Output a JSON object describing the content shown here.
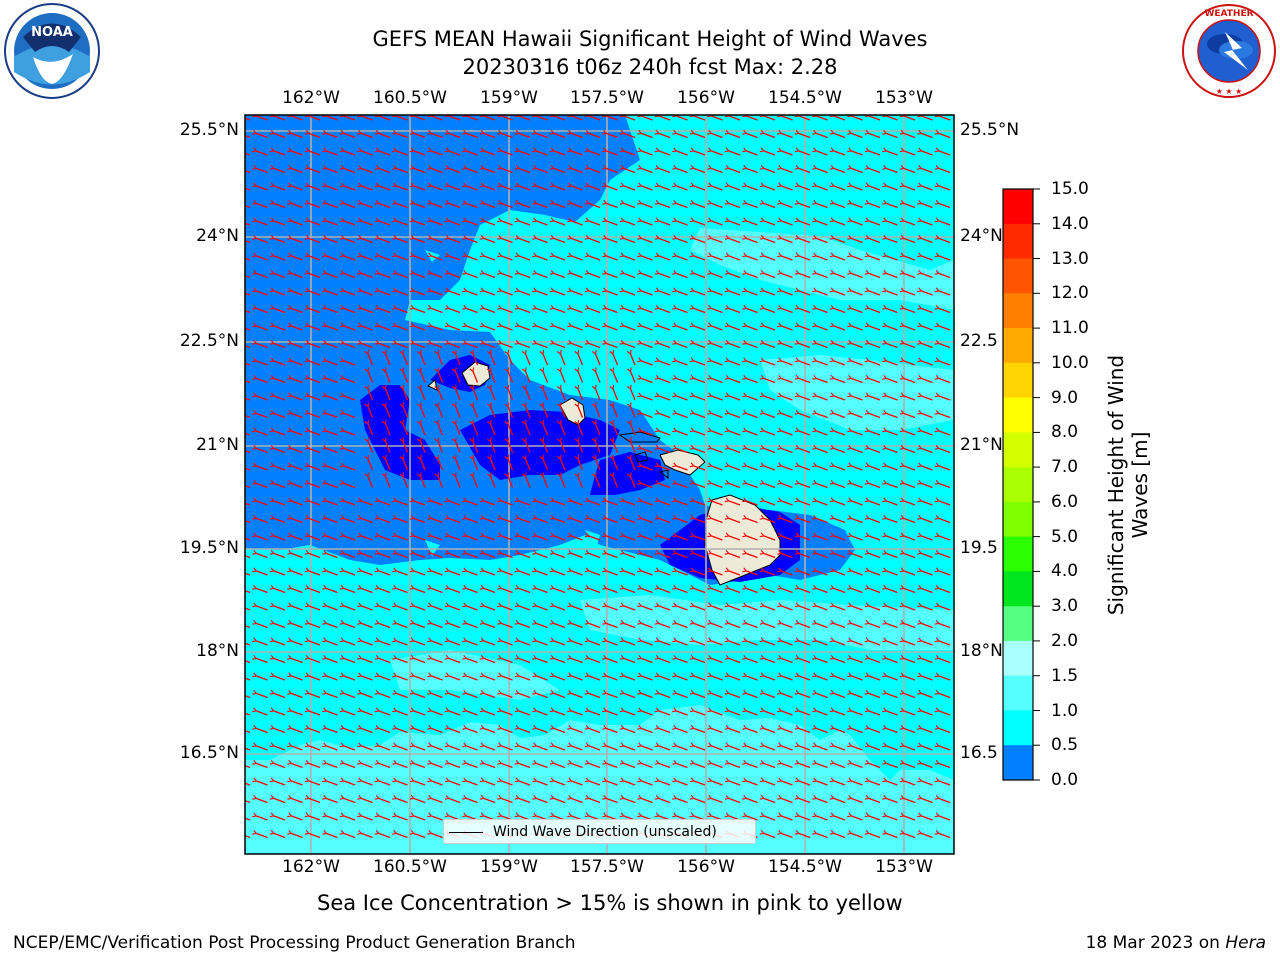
{
  "header": {
    "title_line1": "GEFS MEAN Hawaii Significant Height of Wind Waves",
    "title_line2": "20230316 t06z 240h fcst   Max: 2.28"
  },
  "map": {
    "lon_labels": [
      "162°W",
      "160.5°W",
      "159°W",
      "157.5°W",
      "156°W",
      "154.5°W",
      "153°W"
    ],
    "lat_labels": [
      "25.5°N",
      "24°N",
      "22.5°N",
      "21°N",
      "19.5°N",
      "18°N",
      "16.5°N"
    ],
    "lat_labels_right": [
      "25.5°N",
      "24°N",
      "22.5",
      "21°N",
      "19.5",
      "18°N",
      "16.5"
    ],
    "vector_color": "#ff0000",
    "land_color": "#eeead8"
  },
  "colorbar": {
    "label_line1": "Significant Height of Wind",
    "label_line2": "Waves [m]",
    "ticks": [
      "15.0",
      "14.0",
      "13.0",
      "12.0",
      "11.0",
      "10.0",
      "9.0",
      "8.0",
      "7.0",
      "6.0",
      "5.0",
      "4.0",
      "3.0",
      "2.0",
      "1.5",
      "1.0",
      "0.5",
      "0.0"
    ],
    "colors_top_to_bottom": [
      "#ff0000",
      "#ff2a00",
      "#ff5500",
      "#ff7f00",
      "#ffaa00",
      "#ffd400",
      "#ffff00",
      "#d4ff00",
      "#aaff00",
      "#7fff00",
      "#2aff00",
      "#00e61e",
      "#55ff7f",
      "#aaffff",
      "#55ffff",
      "#00ffff",
      "#0080ff",
      "#0000ff"
    ]
  },
  "legend": {
    "label": "Wind Wave Direction (unscaled)"
  },
  "footer": {
    "note": "Sea Ice Concentration > 15% is shown in pink to yellow",
    "credit_left": "NCEP/EMC/Verification Post Processing Product Generation Branch",
    "credit_date": "18 Mar 2023 on ",
    "credit_machine": "Hera"
  },
  "logos": {
    "left_text": "NOAA",
    "right_text": "NATIONAL WEATHER SERVICE"
  }
}
